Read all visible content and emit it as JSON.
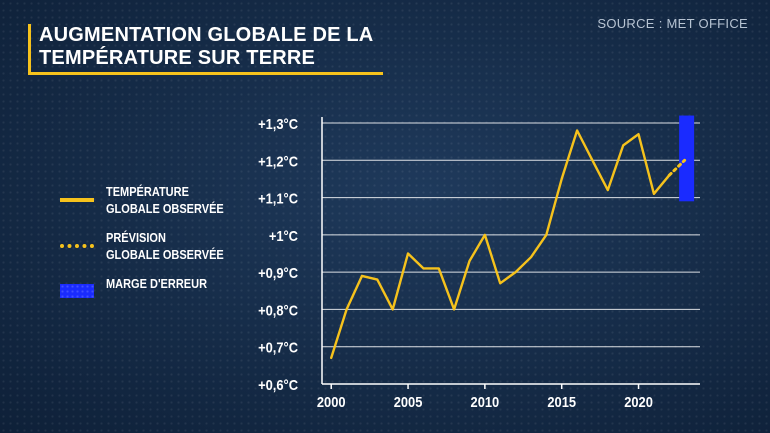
{
  "title": {
    "line1": "AUGMENTATION GLOBALE DE LA",
    "line2": "TEMPÉRATURE SUR TERRE"
  },
  "source": "SOURCE : MET OFFICE",
  "legend": {
    "observed": {
      "line1": "TEMPÉRATURE",
      "line2": "GLOBALE OBSERVÉE"
    },
    "forecast": {
      "line1": "PRÉVISION",
      "line2": "GLOBALE OBSERVÉE"
    },
    "margin": {
      "line1": "MARGE D'ERREUR"
    }
  },
  "colors": {
    "line": "#f6c21c",
    "error_band": "#1a2bff",
    "axis": "#ffffff",
    "grid": "#ffffff"
  },
  "chart_data": {
    "type": "line",
    "ylim": [
      0.6,
      1.3
    ],
    "xlim": [
      1999.4,
      2024.0
    ],
    "y_ticks": [
      {
        "value": 0.6,
        "label": "+0,6°C"
      },
      {
        "value": 0.7,
        "label": "+0,7°C"
      },
      {
        "value": 0.8,
        "label": "+0,8°C"
      },
      {
        "value": 0.9,
        "label": "+0,9°C"
      },
      {
        "value": 1.0,
        "label": "+1°C"
      },
      {
        "value": 1.1,
        "label": "+1,1°C"
      },
      {
        "value": 1.2,
        "label": "+1,2°C"
      },
      {
        "value": 1.3,
        "label": "+1,3°C"
      }
    ],
    "x_ticks": [
      {
        "value": 2000,
        "label": "2000"
      },
      {
        "value": 2005,
        "label": "2005"
      },
      {
        "value": 2010,
        "label": "2010"
      },
      {
        "value": 2015,
        "label": "2015"
      },
      {
        "value": 2020,
        "label": "2020"
      }
    ],
    "grid": "horizontal",
    "series": [
      {
        "name": "TEMPÉRATURE GLOBALE OBSERVÉE",
        "style": "solid",
        "x": [
          2000,
          2001,
          2002,
          2003,
          2004,
          2005,
          2006,
          2007,
          2008,
          2009,
          2010,
          2011,
          2012,
          2013,
          2014,
          2015,
          2016,
          2017,
          2018,
          2019,
          2020,
          2021,
          2022
        ],
        "y": [
          0.67,
          0.8,
          0.89,
          0.88,
          0.8,
          0.95,
          0.91,
          0.91,
          0.8,
          0.93,
          1.0,
          0.87,
          0.9,
          0.94,
          1.0,
          1.15,
          1.28,
          1.2,
          1.12,
          1.24,
          1.27,
          1.11,
          1.16
        ]
      },
      {
        "name": "PRÉVISION GLOBALE OBSERVÉE",
        "style": "dotted",
        "x": [
          2022,
          2023
        ],
        "y": [
          1.16,
          1.2
        ]
      }
    ],
    "error_band": {
      "name": "MARGE D'ERREUR",
      "x_center": 2023,
      "y_range": [
        1.09,
        1.32
      ]
    }
  }
}
